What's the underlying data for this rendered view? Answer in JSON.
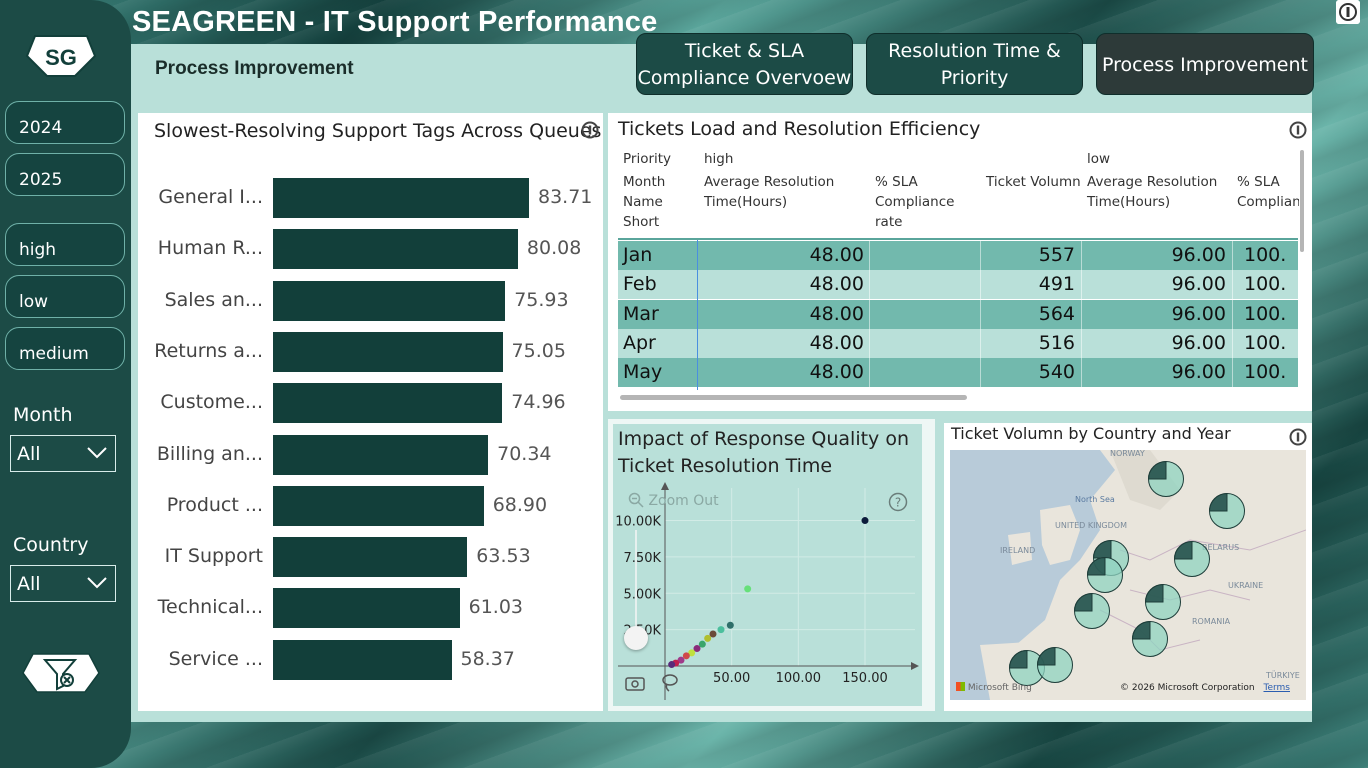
{
  "app": {
    "title": "SEAGREEN - IT Support Performance",
    "logo_text": "SG",
    "page_label": "Process Improvement"
  },
  "sidebar": {
    "year_buttons": [
      "2024",
      "2025"
    ],
    "priority_buttons": [
      "high",
      "low",
      "medium"
    ],
    "month_label": "Month",
    "month_value": "All",
    "country_label": "Country",
    "country_value": "All"
  },
  "nav": {
    "tabs": [
      {
        "label_line1": "Ticket & SLA",
        "label_line2": "Compliance Overvoew",
        "active": false
      },
      {
        "label_line1": "Resolution Time &",
        "label_line2": "Priority",
        "active": false
      },
      {
        "label_line1": "Process Improvement",
        "label_line2": "",
        "active": true
      }
    ]
  },
  "bar_panel": {
    "title": "Slowest-Resolving Support Tags Across Queues"
  },
  "chart_data": [
    {
      "type": "bar",
      "orientation": "horizontal",
      "title": "Slowest-Resolving Support Tags Across Queues",
      "categories": [
        "General I...",
        "Human R...",
        "Sales an...",
        "Returns a...",
        "Custome...",
        "Billing an...",
        "Product ...",
        "IT Support",
        "Technical...",
        "Service ..."
      ],
      "values": [
        83.71,
        80.08,
        75.93,
        75.05,
        74.96,
        70.34,
        68.9,
        63.53,
        61.03,
        58.37
      ],
      "value_labels": [
        "83.71",
        "80.08",
        "75.93",
        "75.05",
        "74.96",
        "70.34",
        "68.90",
        "63.53",
        "61.03",
        "58.37"
      ],
      "xlim": [
        0,
        83.71
      ],
      "color": "#123f3a"
    },
    {
      "type": "scatter",
      "title": "Impact of Response Quality on Ticket Resolution Time",
      "x_ticks": [
        "50.00",
        "100.00",
        "150.00"
      ],
      "y_ticks": [
        "2.50K",
        "5.00K",
        "7.50K",
        "10.00K"
      ],
      "xlim": [
        0,
        180
      ],
      "ylim": [
        0,
        11000
      ],
      "points": [
        {
          "x": 150,
          "y": 10000,
          "color": "#0b1b3a"
        },
        {
          "x": 62,
          "y": 5300,
          "color": "#66e07a"
        },
        {
          "x": 49,
          "y": 2800,
          "color": "#2f6f6a"
        },
        {
          "x": 42,
          "y": 2500,
          "color": "#4bbf9d"
        },
        {
          "x": 36,
          "y": 2200,
          "color": "#6b4a3a"
        },
        {
          "x": 32,
          "y": 1900,
          "color": "#b0bf2e"
        },
        {
          "x": 28,
          "y": 1500,
          "color": "#3aa56a"
        },
        {
          "x": 24,
          "y": 1200,
          "color": "#8a2b7a"
        },
        {
          "x": 20,
          "y": 900,
          "color": "#c0e03e"
        },
        {
          "x": 16,
          "y": 700,
          "color": "#d04a4a"
        },
        {
          "x": 12,
          "y": 400,
          "color": "#a03a8a"
        },
        {
          "x": 8,
          "y": 200,
          "color": "#c02050"
        },
        {
          "x": 5,
          "y": 100,
          "color": "#5a2a7a"
        }
      ],
      "zoom_out_label": "Zoom Out"
    }
  ],
  "matrix": {
    "title": "Tickets Load and Resolution Efficiency",
    "header_priority_label": "Priority",
    "header_high": "high",
    "header_low": "low",
    "month_col_label": [
      "Month",
      "Name",
      "Short"
    ],
    "cols": [
      [
        "Average Resolution",
        "Time(Hours)"
      ],
      [
        "% SLA",
        "Compliance",
        "rate"
      ],
      [
        "Ticket Volumn"
      ],
      [
        "Average Resolution",
        "Time(Hours)"
      ],
      [
        "% SLA",
        "Complian"
      ]
    ],
    "rows": [
      {
        "month": "Jan",
        "avg_high": "48.00",
        "volume": "557",
        "avg_low": "96.00",
        "sla_low": "100."
      },
      {
        "month": "Feb",
        "avg_high": "48.00",
        "volume": "491",
        "avg_low": "96.00",
        "sla_low": "100."
      },
      {
        "month": "Mar",
        "avg_high": "48.00",
        "volume": "564",
        "avg_low": "96.00",
        "sla_low": "100."
      },
      {
        "month": "Apr",
        "avg_high": "48.00",
        "volume": "516",
        "avg_low": "96.00",
        "sla_low": "100."
      },
      {
        "month": "May",
        "avg_high": "48.00",
        "volume": "540",
        "avg_low": "96.00",
        "sla_low": "100."
      }
    ]
  },
  "scatter_panel": {
    "title_line1": "Impact of Response Quality on",
    "title_line2": "Ticket Resolution Time"
  },
  "map_panel": {
    "title": "Ticket Volumn by Country and Year",
    "labels": [
      "NORWAY",
      "North Sea",
      "UNITED KINGDOM",
      "IRELAND",
      "BELARUS",
      "UKRAINE",
      "ROMANIA",
      "TÜRKIYE"
    ],
    "attribution": "© 2026 Microsoft Corporation",
    "terms": "Terms",
    "bing": "Microsoft Bing"
  },
  "colors": {
    "sidebar": "#1c4b46",
    "canvas": "#b9e0d9",
    "bar": "#123f3a",
    "row_dark": "#72b9ad",
    "row_light": "#b9e0d9",
    "pie": "#8fd3c0"
  }
}
